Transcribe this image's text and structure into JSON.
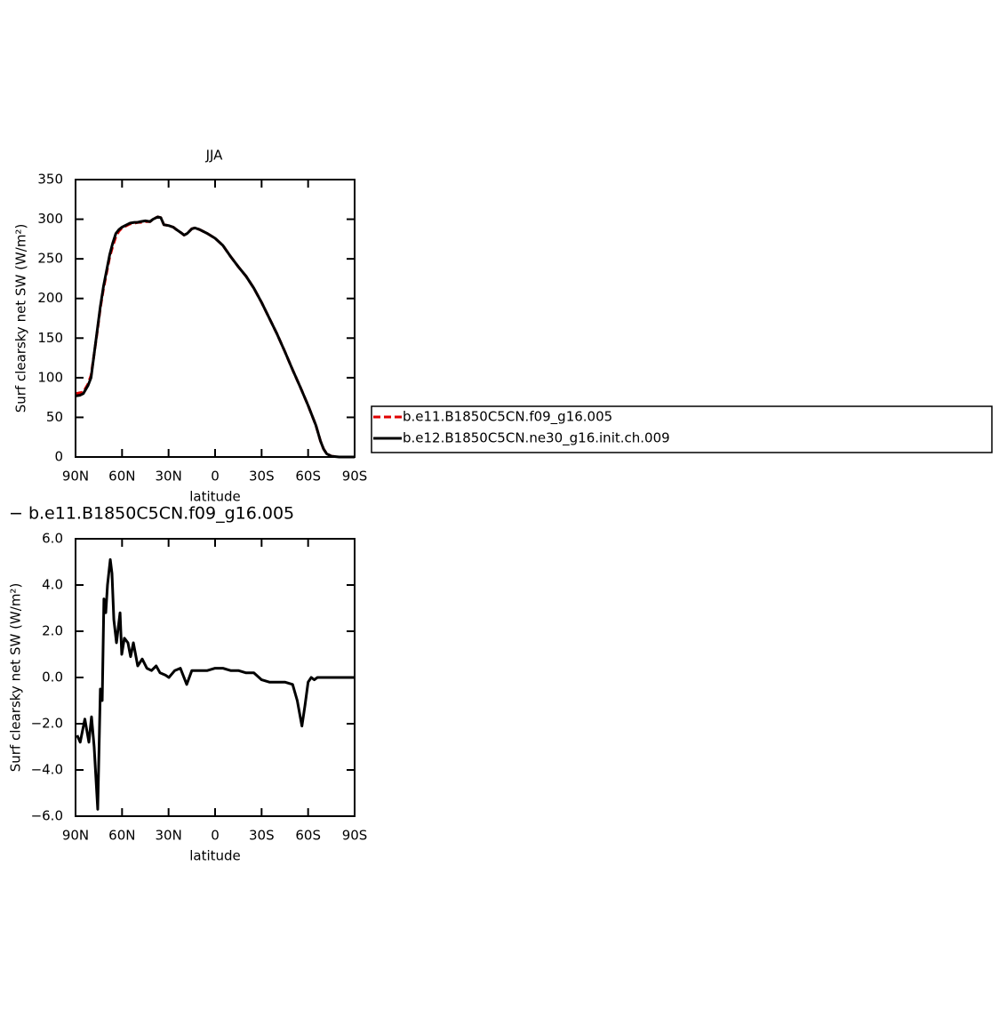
{
  "chart_data": [
    {
      "type": "line",
      "title": "JJA",
      "xlabel": "latitude",
      "ylabel": "Surf clearsky net SW (W/m²)",
      "xlim": [
        90,
        -90
      ],
      "ylim": [
        0,
        350
      ],
      "xticks": [
        {
          "value": 90,
          "label": "90N"
        },
        {
          "value": 60,
          "label": "60N"
        },
        {
          "value": 30,
          "label": "30N"
        },
        0,
        {
          "value": -30,
          "label": "30S"
        },
        {
          "value": -60,
          "label": "60S"
        },
        {
          "value": -90,
          "label": "90S"
        }
      ],
      "yticks": [
        0,
        50,
        100,
        150,
        200,
        250,
        300,
        350
      ],
      "legend": "right",
      "x": [
        90,
        87,
        85,
        82,
        80,
        78,
        76,
        74,
        72,
        70,
        68,
        66,
        64,
        62,
        60,
        57,
        55,
        52,
        50,
        48,
        45,
        42,
        40,
        37,
        35,
        33,
        30,
        27,
        25,
        22,
        20,
        18,
        15,
        13,
        10,
        5,
        0,
        -5,
        -10,
        -15,
        -20,
        -25,
        -30,
        -35,
        -40,
        -45,
        -50,
        -55,
        -60,
        -65,
        -68,
        -70,
        -72,
        -75,
        -80,
        -85,
        -90
      ],
      "series": [
        {
          "name": "b.e11.B1850C5CN.f09_g16.005",
          "color": "#e00000",
          "dash": true,
          "values": [
            80,
            81,
            82,
            92,
            103,
            130,
            158,
            188,
            212,
            232,
            252,
            266,
            278,
            285,
            289,
            292,
            294,
            295,
            296,
            296,
            297,
            297,
            300,
            303,
            302,
            293,
            292,
            290,
            287,
            283,
            280,
            282,
            288,
            289,
            287,
            282,
            276,
            267,
            253,
            240,
            228,
            213,
            195,
            175,
            155,
            133,
            110,
            88,
            65,
            40,
            20,
            10,
            4,
            1,
            0,
            0,
            0
          ]
        },
        {
          "name": "b.e12.B1850C5CN.ne30_g16.init.ch.009",
          "color": "#000000",
          "dash": false,
          "values": [
            77,
            78,
            80,
            90,
            100,
            130,
            160,
            190,
            215,
            235,
            255,
            270,
            282,
            287,
            290,
            293,
            295,
            296,
            296,
            297,
            298,
            297,
            300,
            303,
            302,
            293,
            292,
            290,
            287,
            283,
            280,
            282,
            288,
            289,
            287,
            282,
            276,
            267,
            253,
            240,
            228,
            213,
            195,
            175,
            155,
            133,
            110,
            88,
            65,
            40,
            20,
            10,
            4,
            1,
            0,
            0,
            0
          ]
        }
      ]
    },
    {
      "type": "line",
      "title": "− b.e11.B1850C5CN.f09_g16.005",
      "xlabel": "latitude",
      "ylabel": "Surf clearsky net SW (W/m²)",
      "xlim": [
        90,
        -90
      ],
      "ylim": [
        -6,
        6
      ],
      "xticks": [
        {
          "value": 90,
          "label": "90N"
        },
        {
          "value": 60,
          "label": "60N"
        },
        {
          "value": 30,
          "label": "30N"
        },
        0,
        {
          "value": -30,
          "label": "30S"
        },
        {
          "value": -60,
          "label": "60S"
        },
        {
          "value": -90,
          "label": "90S"
        }
      ],
      "yticks": [
        {
          "value": 6,
          "label": "6.0"
        },
        {
          "value": 4,
          "label": "4.0"
        },
        {
          "value": 2,
          "label": "2.0"
        },
        {
          "value": 0,
          "label": "0.0"
        },
        {
          "value": -2,
          "label": "−2.0"
        },
        {
          "value": -4,
          "label": "−4.0"
        },
        {
          "value": -6,
          "label": "−6.0"
        }
      ],
      "x": [
        89,
        87,
        84,
        81.4,
        79.7,
        78,
        75.7,
        74,
        72.8,
        71.7,
        70.5,
        69.4,
        67.6,
        66.5,
        65.3,
        63.6,
        61.3,
        60.2,
        58.5,
        56.2,
        54.5,
        52.7,
        49.9,
        47,
        44,
        41,
        38,
        35.5,
        32,
        29.8,
        26,
        22.4,
        18.3,
        15,
        10,
        5,
        0,
        -5,
        -10,
        -15,
        -20,
        -25,
        -30,
        -35,
        -40,
        -45,
        -50,
        -53,
        -56,
        -58,
        -60,
        -62,
        -64,
        -66,
        -70,
        -80,
        -90
      ],
      "color": "#000000",
      "values": [
        -2.5,
        -2.8,
        -1.8,
        -2.8,
        -1.7,
        -3.0,
        -5.7,
        -0.5,
        -1.0,
        3.4,
        2.8,
        4.0,
        5.1,
        4.5,
        2.5,
        1.5,
        2.8,
        1.0,
        1.7,
        1.5,
        0.9,
        1.5,
        0.5,
        0.8,
        0.4,
        0.3,
        0.5,
        0.2,
        0.1,
        0.0,
        0.3,
        0.4,
        -0.3,
        0.3,
        0.3,
        0.3,
        0.4,
        0.4,
        0.3,
        0.3,
        0.2,
        0.2,
        -0.1,
        -0.2,
        -0.2,
        -0.2,
        -0.3,
        -1.0,
        -2.1,
        -1.2,
        -0.2,
        0.0,
        -0.1,
        0.0,
        0.0,
        0.0,
        0.0
      ]
    }
  ]
}
